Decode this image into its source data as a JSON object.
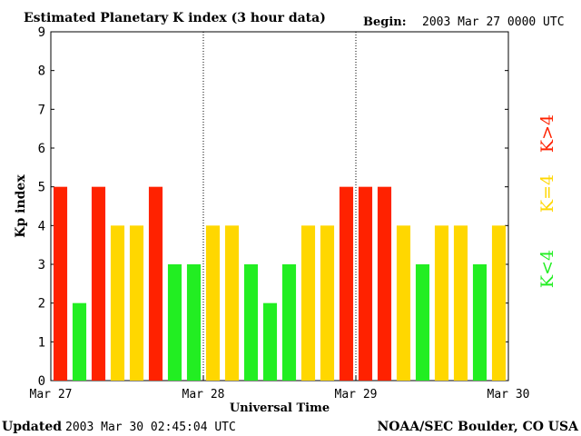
{
  "chart_data": {
    "type": "bar",
    "title": "Estimated Planetary K index (3 hour data)",
    "begin_label": "Begin:",
    "begin_value": "2003 Mar 27 0000 UTC",
    "ylabel": "Kp index",
    "xlabel": "Universal Time",
    "ylim": [
      0,
      9
    ],
    "yticks": [
      "0",
      "1",
      "2",
      "3",
      "4",
      "5",
      "6",
      "7",
      "8",
      "9"
    ],
    "xticks": [
      "Mar 27",
      "Mar 28",
      "Mar 29",
      "Mar 30"
    ],
    "values": [
      5,
      2,
      5,
      4,
      4,
      5,
      3,
      3,
      4,
      4,
      3,
      2,
      3,
      4,
      4,
      5,
      5,
      5,
      4,
      3,
      4,
      4,
      3,
      4
    ],
    "legend": [
      {
        "label": "K<4",
        "color": "#22ee22"
      },
      {
        "label": "K=4",
        "color": "#ffd700"
      },
      {
        "label": "K>4",
        "color": "#ff2200"
      }
    ],
    "colors": {
      "low": "#22ee22",
      "mid": "#ffd700",
      "high": "#ff2200"
    }
  },
  "footer": {
    "updated_label": "Updated",
    "updated_value": "2003 Mar 30 02:45:04 UTC",
    "source": "NOAA/SEC Boulder, CO USA"
  }
}
